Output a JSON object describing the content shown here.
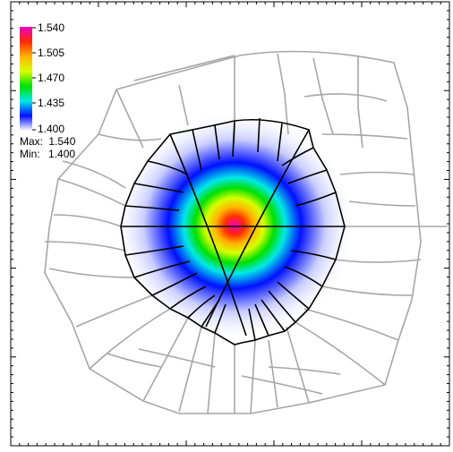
{
  "chart_data": {
    "type": "heatmap",
    "title": "",
    "xlabel": "",
    "ylabel": "",
    "colorbar": {
      "ticks": [
        "1.540",
        "1.505",
        "1.470",
        "1.435",
        "1.400"
      ],
      "range": [
        1.4,
        1.54
      ],
      "colors": [
        "#f000c8",
        "#ff2a00",
        "#ffb400",
        "#d7ff00",
        "#00e000",
        "#00e8e8",
        "#0010ff",
        "#ffffff"
      ]
    },
    "stats": {
      "max_label": "Max:",
      "max_value": "1.540",
      "min_label": "Min:",
      "min_value": "1.400"
    },
    "field": {
      "peak_value": 1.54,
      "background_value": 1.4,
      "profile": "radial gaussian bump centered on the refined mesh region"
    },
    "grid": false,
    "legend_position": "top-left"
  }
}
